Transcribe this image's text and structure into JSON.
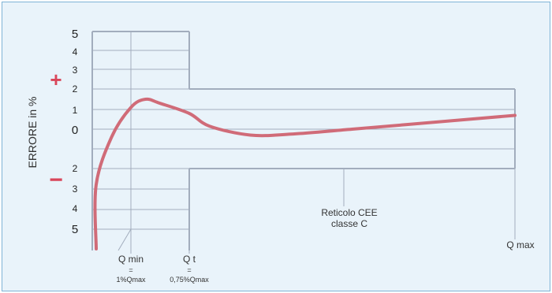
{
  "chart_data": {
    "type": "line",
    "ylabel": "ERRORE in %",
    "y_ticks_upper": [
      "5",
      "4",
      "3",
      "2",
      "1"
    ],
    "y_tick_zero": "0",
    "y_ticks_lower": [
      "2",
      "3",
      "4",
      "5"
    ],
    "plus_sign": "+",
    "minus_sign": "−",
    "annotation": {
      "line1": "Reticolo CEE",
      "line2": "classe C"
    },
    "x_labels": {
      "qmin": "Q min",
      "qmin_eq": "=",
      "qmin_value": "1%Qmax",
      "qt": "Q t",
      "qt_eq": "=",
      "qt_value": "0,75%Qmax",
      "qmax": "Q max"
    },
    "envelope": {
      "upper_low_flow": 5,
      "lower_low_flow": -5,
      "upper_high_flow": 2,
      "lower_high_flow": -2
    },
    "series": [
      {
        "color": "#d06b78",
        "points": [
          [
            -0.5,
            -6
          ],
          [
            0.1,
            -2.8
          ],
          [
            0.5,
            -0.4
          ],
          [
            1.0,
            1.1
          ],
          [
            1.5,
            1.5
          ],
          [
            2.0,
            1.3
          ],
          [
            3.0,
            0.8
          ],
          [
            4.0,
            0.15
          ],
          [
            6.0,
            -0.3
          ],
          [
            8.0,
            -0.25
          ],
          [
            11.0,
            0.0
          ],
          [
            15.0,
            0.35
          ],
          [
            19.0,
            0.7
          ]
        ]
      }
    ],
    "colors": {
      "background": "#e9f3fa",
      "border": "#7fb3d6",
      "grid": "#a2adbd",
      "signs": "#d9465a",
      "curve": "#d06b78"
    }
  }
}
